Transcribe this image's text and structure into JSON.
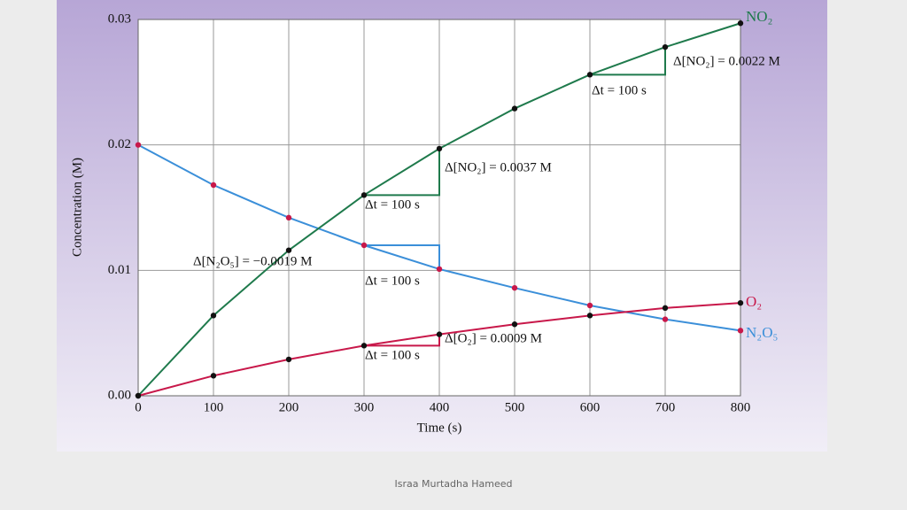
{
  "chart_data": {
    "type": "line",
    "x": [
      0,
      100,
      200,
      300,
      400,
      500,
      600,
      700,
      800
    ],
    "series": [
      {
        "name": "N₂O₅",
        "color": "#3b8fd9",
        "marker_color": "#c8184a",
        "values": [
          0.02,
          0.0168,
          0.0142,
          0.012,
          0.0101,
          0.0086,
          0.0072,
          0.0061,
          0.0052
        ]
      },
      {
        "name": "NO₂",
        "color": "#1f7a4c",
        "marker_color": "#111111",
        "values": [
          0,
          0.0064,
          0.0116,
          0.016,
          0.0197,
          0.0229,
          0.0256,
          0.0278,
          0.0297
        ]
      },
      {
        "name": "O₂",
        "color": "#c8184a",
        "marker_color": "#111111",
        "values": [
          0,
          0.0016,
          0.0029,
          0.004,
          0.0049,
          0.0057,
          0.0064,
          0.007,
          0.0074
        ]
      }
    ],
    "xlim": [
      0,
      800
    ],
    "xticks": [
      0,
      100,
      200,
      300,
      400,
      500,
      600,
      700,
      800
    ],
    "ylim": [
      0,
      0.03
    ],
    "yticks": [
      {
        "value": 0,
        "label": "0.00"
      },
      0.01,
      0.02,
      0.03
    ],
    "xlabel": "Time (s)",
    "ylabel": "Concentration (M)",
    "grid": true,
    "annotations": [
      "Δ[NO₂] = 0.0022 M",
      "Δt = 100 s",
      "Δ[NO₂] = 0.0037 M",
      "Δt = 100 s",
      "Δ[N₂O₅] = −0.0019 M",
      "Δt = 100 s",
      "Δ[O₂] = 0.0009 M",
      "Δt = 100 s"
    ]
  },
  "footer": "Israa Murtadha Hameed"
}
